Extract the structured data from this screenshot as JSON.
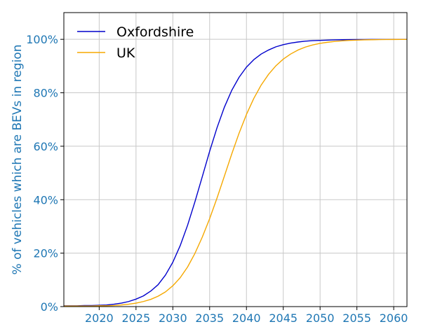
{
  "chart_data": {
    "type": "line",
    "title": "",
    "xlabel": "",
    "ylabel": "% of vehicles which are BEVs in region",
    "xlim": [
      2015.2,
      2061.8
    ],
    "ylim": [
      0,
      110
    ],
    "x_ticks": [
      2020,
      2025,
      2030,
      2035,
      2040,
      2045,
      2050,
      2055,
      2060
    ],
    "x_tick_labels": [
      "2020",
      "2025",
      "2030",
      "2035",
      "2040",
      "2045",
      "2050",
      "2055",
      "2060"
    ],
    "y_ticks": [
      0,
      20,
      40,
      60,
      80,
      100
    ],
    "y_tick_labels": [
      "0%",
      "20%",
      "40%",
      "60%",
      "80%",
      "100%"
    ],
    "grid": true,
    "legend_position": "top-left",
    "y_axis_color": "#1f77b4",
    "series": [
      {
        "name": "Oxfordshire",
        "color": "#0000cc",
        "x": [
          2015,
          2016,
          2017,
          2018,
          2019,
          2020,
          2021,
          2022,
          2023,
          2024,
          2025,
          2026,
          2027,
          2028,
          2029,
          2030,
          2031,
          2032,
          2033,
          2034,
          2035,
          2036,
          2037,
          2038,
          2039,
          2040,
          2041,
          2042,
          2043,
          2044,
          2045,
          2046,
          2047,
          2048,
          2049,
          2050,
          2051,
          2052,
          2053,
          2054,
          2055,
          2056,
          2057,
          2058,
          2059,
          2060,
          2061,
          2062
        ],
        "y": [
          0.3,
          0.3,
          0.3,
          0.4,
          0.4,
          0.5,
          0.6,
          0.9,
          1.3,
          1.9,
          2.8,
          4.0,
          5.8,
          8.2,
          11.8,
          16.6,
          22.8,
          30.4,
          39.2,
          48.6,
          58.1,
          66.9,
          74.6,
          80.9,
          85.8,
          89.6,
          92.4,
          94.5,
          96.0,
          97.2,
          98.0,
          98.6,
          99.0,
          99.3,
          99.5,
          99.6,
          99.7,
          99.8,
          99.85,
          99.9,
          99.92,
          99.94,
          99.95,
          99.96,
          99.97,
          99.98,
          99.99,
          100
        ]
      },
      {
        "name": "UK",
        "color": "#f5a800",
        "x": [
          2015,
          2016,
          2017,
          2018,
          2019,
          2020,
          2021,
          2022,
          2023,
          2024,
          2025,
          2026,
          2027,
          2028,
          2029,
          2030,
          2031,
          2032,
          2033,
          2034,
          2035,
          2036,
          2037,
          2038,
          2039,
          2040,
          2041,
          2042,
          2043,
          2044,
          2045,
          2046,
          2047,
          2048,
          2049,
          2050,
          2051,
          2052,
          2053,
          2054,
          2055,
          2056,
          2057,
          2058,
          2059,
          2060,
          2061,
          2062
        ],
        "y": [
          0.2,
          0.2,
          0.2,
          0.2,
          0.2,
          0.3,
          0.3,
          0.4,
          0.6,
          0.9,
          1.3,
          1.9,
          2.7,
          3.9,
          5.5,
          7.8,
          10.8,
          14.8,
          19.9,
          26.0,
          32.9,
          40.6,
          48.8,
          57.1,
          64.9,
          71.9,
          77.9,
          82.9,
          86.9,
          90.1,
          92.6,
          94.5,
          96.0,
          97.1,
          97.9,
          98.5,
          98.9,
          99.2,
          99.45,
          99.6,
          99.7,
          99.8,
          99.85,
          99.9,
          99.93,
          99.95,
          99.97,
          99.98
        ]
      }
    ]
  }
}
